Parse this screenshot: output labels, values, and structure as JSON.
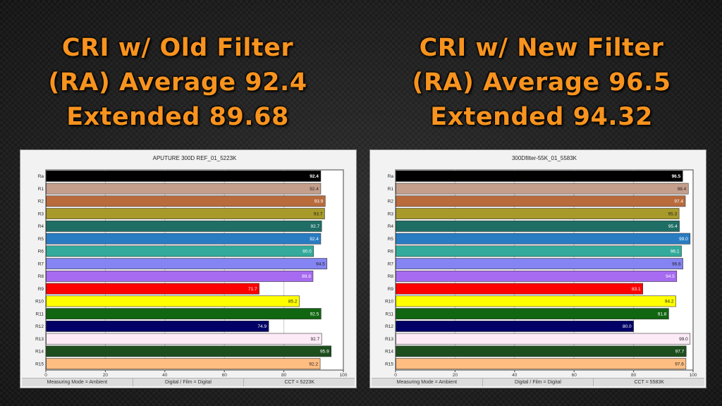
{
  "headlines": {
    "left": {
      "line1": "CRI w/ Old Filter",
      "line2": "(RA) Average 92.4",
      "line3": "Extended  89.68"
    },
    "right": {
      "line1": "CRI w/ New Filter",
      "line2": "(RA) Average 96.5",
      "line3": "Extended  94.32"
    }
  },
  "chart_data": [
    {
      "type": "bar",
      "orientation": "horizontal",
      "title": "APUTURE 300D REF_01_5223K",
      "categories": [
        "Ra",
        "R1",
        "R2",
        "R3",
        "R4",
        "R5",
        "R6",
        "R7",
        "R8",
        "R9",
        "R10",
        "R11",
        "R12",
        "R13",
        "R14",
        "R15"
      ],
      "values": [
        92.4,
        92.4,
        93.9,
        93.7,
        92.7,
        92.4,
        90.0,
        94.5,
        89.8,
        71.7,
        85.2,
        92.5,
        74.9,
        92.7,
        95.9,
        92.2
      ],
      "value_labels": [
        "92.4",
        "92.4",
        "93.9",
        "93.7",
        "92.7",
        "92.4",
        "90.0",
        "94.5",
        "89.8",
        "71.7",
        "85.2",
        "92.5",
        "74.9",
        "92.7",
        "95.9",
        "92.2"
      ],
      "colors": [
        "#000000",
        "#c59e8c",
        "#b96b3c",
        "#a89a2a",
        "#1f6e66",
        "#2a7cc2",
        "#33aa9b",
        "#8484f2",
        "#a66bf0",
        "#ff0000",
        "#ffff00",
        "#116611",
        "#000066",
        "#fcebf6",
        "#1e4e1e",
        "#ffbd82"
      ],
      "xlim": [
        0,
        100
      ],
      "xticks": [
        "0",
        "20",
        "40",
        "60",
        "80",
        "100"
      ],
      "grid": true,
      "status": [
        "Measuring Mode = Ambient",
        "Digital / Film = Digital",
        "CCT = 5223K"
      ]
    },
    {
      "type": "bar",
      "orientation": "horizontal",
      "title": "300Dfilter-55K_01_5583K",
      "categories": [
        "Ra",
        "R1",
        "R2",
        "R3",
        "R4",
        "R5",
        "R6",
        "R7",
        "R8",
        "R9",
        "R10",
        "R11",
        "R12",
        "R13",
        "R14",
        "R15"
      ],
      "values": [
        96.5,
        98.4,
        97.4,
        95.3,
        95.4,
        99.0,
        96.1,
        96.6,
        94.5,
        83.1,
        94.2,
        91.8,
        80.0,
        99.0,
        97.7,
        97.6
      ],
      "value_labels": [
        "96.5",
        "98.4",
        "97.4",
        "95.3",
        "95.4",
        "99.0",
        "96.1",
        "96.6",
        "94.5",
        "83.1",
        "94.2",
        "91.8",
        "80.0",
        "99.0",
        "97.7",
        "97.6"
      ],
      "colors": [
        "#000000",
        "#c59e8c",
        "#b96b3c",
        "#a89a2a",
        "#1f6e66",
        "#2a7cc2",
        "#33aa9b",
        "#8484f2",
        "#a66bf0",
        "#ff0000",
        "#ffff00",
        "#116611",
        "#000066",
        "#fcebf6",
        "#1e4e1e",
        "#ffbd82"
      ],
      "xlim": [
        0,
        100
      ],
      "xticks": [
        "0",
        "20",
        "40",
        "60",
        "80",
        "100"
      ],
      "grid": true,
      "status": [
        "Measuring Mode = Ambient",
        "Digital / Film = Digital",
        "CCT = 5583K"
      ]
    }
  ]
}
